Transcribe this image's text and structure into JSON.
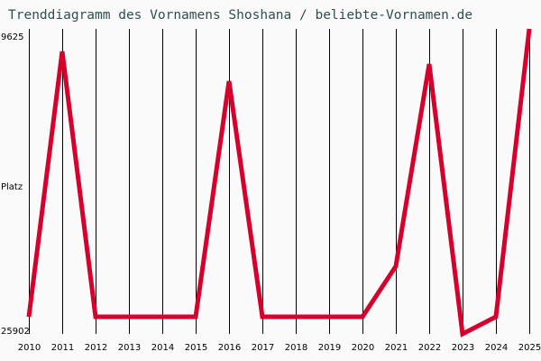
{
  "title": "Trenddiagramm des Vornamens Shoshana / beliebte-Vornamen.de",
  "y_axis": {
    "top_label": "9625",
    "mid_label": "Platz",
    "bottom_label": "25902"
  },
  "colors": {
    "line": "#d5002c",
    "title": "#2f4f4f",
    "background": "#fafafa",
    "grid": "#000000"
  },
  "chart_data": {
    "type": "line",
    "title": "Trenddiagramm des Vornamens Shoshana / beliebte-Vornamen.de",
    "xlabel": "",
    "ylabel": "Platz",
    "ylim": [
      25902,
      9625
    ],
    "y_inverted": true,
    "grid": "vertical",
    "categories": [
      "2010",
      "2011",
      "2012",
      "2013",
      "2014",
      "2015",
      "2016",
      "2017",
      "2018",
      "2019",
      "2020",
      "2021",
      "2022",
      "2023",
      "2024",
      "2025"
    ],
    "series": [
      {
        "name": "Shoshana",
        "values": [
          24988,
          10829,
          24988,
          24988,
          24988,
          24988,
          12418,
          24988,
          24988,
          24988,
          24988,
          22291,
          11503,
          25902,
          24988,
          9625
        ]
      }
    ]
  }
}
